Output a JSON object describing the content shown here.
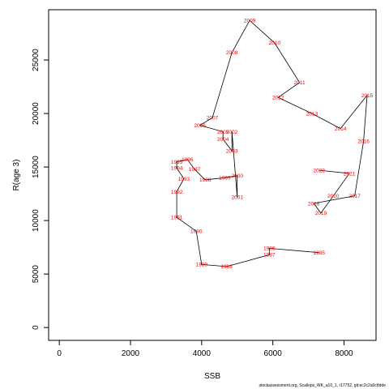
{
  "chart_data": {
    "type": "line",
    "xlabel": "SSB",
    "ylabel": "R(age 3)",
    "xlim": [
      -300,
      8900
    ],
    "ylim": [
      -1200,
      29700
    ],
    "x_ticks": [
      0,
      2000,
      4000,
      6000,
      8000
    ],
    "y_ticks": [
      0,
      5000,
      10000,
      15000,
      20000,
      25000
    ],
    "label_color": "#ff0000",
    "line_color": "#000000",
    "grid": false,
    "points": [
      {
        "label": "1985",
        "x": 7300,
        "y": 7000
      },
      {
        "label": "1986",
        "x": 5900,
        "y": 7400
      },
      {
        "label": "1987",
        "x": 5900,
        "y": 6800
      },
      {
        "label": "1988",
        "x": 4700,
        "y": 5700
      },
      {
        "label": "1989",
        "x": 4000,
        "y": 5900
      },
      {
        "label": "1990",
        "x": 3850,
        "y": 9000
      },
      {
        "label": "1991",
        "x": 3300,
        "y": 10300
      },
      {
        "label": "1992",
        "x": 3300,
        "y": 12700
      },
      {
        "label": "1993",
        "x": 3500,
        "y": 13900
      },
      {
        "label": "1994",
        "x": 3300,
        "y": 14900
      },
      {
        "label": "1995",
        "x": 3300,
        "y": 15500
      },
      {
        "label": "1996",
        "x": 3600,
        "y": 15700
      },
      {
        "label": "1997",
        "x": 3800,
        "y": 14800
      },
      {
        "label": "1998",
        "x": 4100,
        "y": 13800
      },
      {
        "label": "1999",
        "x": 4650,
        "y": 14000
      },
      {
        "label": "2000",
        "x": 5000,
        "y": 14200
      },
      {
        "label": "2001",
        "x": 5000,
        "y": 12200
      },
      {
        "label": "2002",
        "x": 4850,
        "y": 18300
      },
      {
        "label": "2003",
        "x": 4850,
        "y": 16500
      },
      {
        "label": "2004",
        "x": 4600,
        "y": 17600
      },
      {
        "label": "2005",
        "x": 4600,
        "y": 18300
      },
      {
        "label": "2006",
        "x": 3950,
        "y": 18900
      },
      {
        "label": "2007",
        "x": 4300,
        "y": 19600
      },
      {
        "label": "2008",
        "x": 4850,
        "y": 25700
      },
      {
        "label": "2009",
        "x": 5350,
        "y": 28700
      },
      {
        "label": "2010",
        "x": 6050,
        "y": 26600
      },
      {
        "label": "2011",
        "x": 6750,
        "y": 22900
      },
      {
        "label": "2012",
        "x": 6150,
        "y": 21500
      },
      {
        "label": "2013",
        "x": 7100,
        "y": 20000
      },
      {
        "label": "2014",
        "x": 7900,
        "y": 18600
      },
      {
        "label": "2015",
        "x": 8650,
        "y": 21700
      },
      {
        "label": "2016",
        "x": 8550,
        "y": 17400
      },
      {
        "label": "2017",
        "x": 8300,
        "y": 12300
      },
      {
        "label": "2018",
        "x": 7150,
        "y": 11600
      },
      {
        "label": "2019",
        "x": 7350,
        "y": 10700
      },
      {
        "label": "2020",
        "x": 7700,
        "y": 12300
      },
      {
        "label": "2021",
        "x": 8150,
        "y": 14400
      },
      {
        "label": "2022",
        "x": 7300,
        "y": 14700
      }
    ]
  },
  "footnote": "stockassessment.org, Scallops_WK_a10_1, r17752, git:ec2c2a0c8dde"
}
